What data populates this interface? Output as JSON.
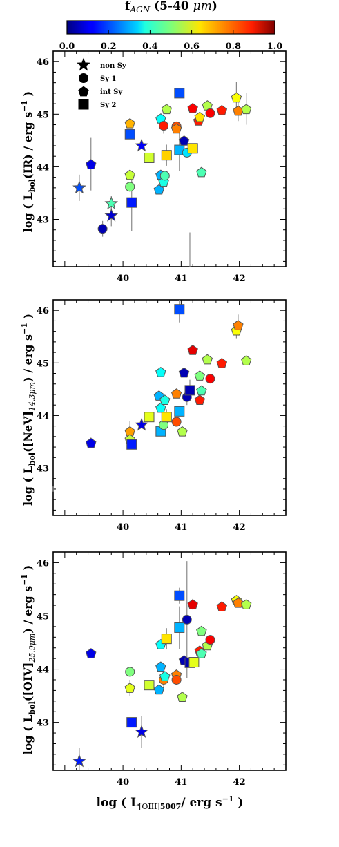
{
  "colorbar": {
    "title_main": "f",
    "title_sub": "AGN",
    "title_range": " (5-40 ",
    "title_unit": "μm",
    "title_close": ")",
    "ticks": [
      "0.0",
      "0.2",
      "0.4",
      "0.6",
      "0.8",
      "1.0"
    ],
    "range": [
      0,
      1
    ],
    "colormap": "jet"
  },
  "legend": [
    {
      "marker": "star",
      "label": "non Sy"
    },
    {
      "marker": "circle",
      "label": "Sy 1"
    },
    {
      "marker": "pentagon",
      "label": "int Sy"
    },
    {
      "marker": "square",
      "label": "Sy 2"
    }
  ],
  "xlabel": {
    "pre": "log ( L",
    "sub": "[OIII]",
    "sub2": "5007",
    "post": "/ erg s",
    "sup": "−1",
    "close": " )"
  },
  "chart_data": [
    {
      "type": "scatter",
      "ylabel": {
        "pre": "log ( L",
        "sub": "bol",
        "mid": "(IR) / erg s",
        "sup": "−1",
        "close": " )"
      },
      "xlim": [
        38.8,
        42.8
      ],
      "ylim": [
        42.1,
        46.2
      ],
      "xticks": [
        "40",
        "41",
        "42"
      ],
      "yticks": [
        "43",
        "44",
        "45",
        "46"
      ],
      "points": [
        {
          "x": 39.25,
          "y": 43.6,
          "m": "star",
          "c": 0.2,
          "e": 0.25
        },
        {
          "x": 39.45,
          "y": 44.05,
          "m": "pentagon",
          "c": 0.1,
          "e": 0.5
        },
        {
          "x": 39.65,
          "y": 42.82,
          "m": "circle",
          "c": 0.05,
          "e": 0.15
        },
        {
          "x": 39.8,
          "y": 43.3,
          "m": "star",
          "c": 0.45,
          "e": 0.15
        },
        {
          "x": 39.8,
          "y": 43.07,
          "m": "star",
          "c": 0.08,
          "e": 0.2
        },
        {
          "x": 40.12,
          "y": 44.83,
          "m": "pentagon",
          "c": 0.7,
          "e": 0
        },
        {
          "x": 40.12,
          "y": 44.62,
          "m": "square",
          "c": 0.2,
          "e": 0
        },
        {
          "x": 40.12,
          "y": 43.85,
          "m": "pentagon",
          "c": 0.57,
          "e": 0
        },
        {
          "x": 40.12,
          "y": 43.62,
          "m": "circle",
          "c": 0.5,
          "e": 0
        },
        {
          "x": 40.15,
          "y": 43.32,
          "m": "square",
          "c": 0.15,
          "e": 0.55
        },
        {
          "x": 40.32,
          "y": 44.4,
          "m": "star",
          "c": 0.12,
          "e": 0
        },
        {
          "x": 40.45,
          "y": 44.17,
          "m": "square",
          "c": 0.58,
          "e": 0
        },
        {
          "x": 40.62,
          "y": 43.57,
          "m": "pentagon",
          "c": 0.3,
          "e": 0
        },
        {
          "x": 40.65,
          "y": 43.85,
          "m": "pentagon",
          "c": 0.3,
          "e": 0
        },
        {
          "x": 40.65,
          "y": 44.92,
          "m": "pentagon",
          "c": 0.38,
          "e": 0
        },
        {
          "x": 40.7,
          "y": 44.78,
          "m": "circle",
          "c": 0.85,
          "e": 0.15
        },
        {
          "x": 40.7,
          "y": 43.72,
          "m": "pentagon",
          "c": 0.4,
          "e": 0
        },
        {
          "x": 40.72,
          "y": 43.83,
          "m": "circle",
          "c": 0.45,
          "e": 0
        },
        {
          "x": 40.75,
          "y": 45.1,
          "m": "pentagon",
          "c": 0.55,
          "e": 0
        },
        {
          "x": 40.75,
          "y": 44.22,
          "m": "square",
          "c": 0.67,
          "e": 0.2
        },
        {
          "x": 40.92,
          "y": 44.77,
          "m": "circle",
          "c": 0.8,
          "e": 0
        },
        {
          "x": 40.92,
          "y": 44.73,
          "m": "pentagon",
          "c": 0.75,
          "e": 0
        },
        {
          "x": 40.97,
          "y": 45.4,
          "m": "square",
          "c": 0.2,
          "e": 0
        },
        {
          "x": 40.97,
          "y": 44.32,
          "m": "square",
          "c": 0.3,
          "e": 0.4
        },
        {
          "x": 41.05,
          "y": 44.5,
          "m": "pentagon",
          "c": 0.05,
          "e": 0
        },
        {
          "x": 41.1,
          "y": 44.27,
          "m": "circle",
          "c": 0.35,
          "e": 0
        },
        {
          "x": 41.15,
          "y": 42.1,
          "m": "none",
          "c": 0,
          "e": 0.65
        },
        {
          "x": 41.2,
          "y": 45.12,
          "m": "pentagon",
          "c": 0.88,
          "e": 0
        },
        {
          "x": 41.2,
          "y": 44.35,
          "m": "square",
          "c": 0.65,
          "e": 0
        },
        {
          "x": 41.3,
          "y": 44.88,
          "m": "pentagon",
          "c": 0.85,
          "e": 0
        },
        {
          "x": 41.32,
          "y": 44.95,
          "m": "pentagon",
          "c": 0.65,
          "e": 0
        },
        {
          "x": 41.35,
          "y": 43.9,
          "m": "pentagon",
          "c": 0.45,
          "e": 0
        },
        {
          "x": 41.45,
          "y": 45.17,
          "m": "pentagon",
          "c": 0.55,
          "e": 0
        },
        {
          "x": 41.5,
          "y": 45.02,
          "m": "circle",
          "c": 0.88,
          "e": 0
        },
        {
          "x": 41.7,
          "y": 45.08,
          "m": "pentagon",
          "c": 0.85,
          "e": 0
        },
        {
          "x": 41.95,
          "y": 45.32,
          "m": "pentagon",
          "c": 0.62,
          "e": 0.3
        },
        {
          "x": 41.98,
          "y": 45.07,
          "m": "pentagon",
          "c": 0.75,
          "e": 0.2
        },
        {
          "x": 42.12,
          "y": 45.1,
          "m": "pentagon",
          "c": 0.55,
          "e": 0.3
        }
      ]
    },
    {
      "type": "scatter",
      "ylabel": {
        "pre": "log ( L",
        "sub": "bol",
        "mid": "([NeV]",
        "sub2": "14.3μm",
        "close": ") / erg s",
        "sup": "−1",
        "close2": " )"
      },
      "xlim": [
        38.8,
        42.8
      ],
      "ylim": [
        42.1,
        46.2
      ],
      "xticks": [
        "40",
        "41",
        "42"
      ],
      "yticks": [
        "43",
        "44",
        "45",
        "46"
      ],
      "points": [
        {
          "x": 38.8,
          "y": 42.6,
          "m": "none",
          "c": 0,
          "e": 0.05
        },
        {
          "x": 39.45,
          "y": 43.48,
          "m": "pentagon",
          "c": 0.1,
          "e": 0.1
        },
        {
          "x": 40.12,
          "y": 43.7,
          "m": "pentagon",
          "c": 0.72,
          "e": 0.2
        },
        {
          "x": 40.12,
          "y": 43.55,
          "m": "pentagon",
          "c": 0.57,
          "e": 0.1
        },
        {
          "x": 40.15,
          "y": 43.45,
          "m": "square",
          "c": 0.15,
          "e": 0
        },
        {
          "x": 40.32,
          "y": 43.82,
          "m": "star",
          "c": 0.1,
          "e": 0
        },
        {
          "x": 40.45,
          "y": 43.97,
          "m": "square",
          "c": 0.6,
          "e": 0
        },
        {
          "x": 40.62,
          "y": 44.38,
          "m": "pentagon",
          "c": 0.3,
          "e": 0
        },
        {
          "x": 40.65,
          "y": 44.15,
          "m": "pentagon",
          "c": 0.38,
          "e": 0
        },
        {
          "x": 40.65,
          "y": 44.83,
          "m": "pentagon",
          "c": 0.38,
          "e": 0
        },
        {
          "x": 40.65,
          "y": 43.7,
          "m": "square",
          "c": 0.3,
          "e": 0
        },
        {
          "x": 40.7,
          "y": 43.82,
          "m": "circle",
          "c": 0.5,
          "e": 0.2
        },
        {
          "x": 40.72,
          "y": 44.3,
          "m": "pentagon",
          "c": 0.4,
          "e": 0
        },
        {
          "x": 40.75,
          "y": 43.97,
          "m": "square",
          "c": 0.65,
          "e": 0.15
        },
        {
          "x": 40.92,
          "y": 44.42,
          "m": "pentagon",
          "c": 0.75,
          "e": 0
        },
        {
          "x": 40.92,
          "y": 43.88,
          "m": "circle",
          "c": 0.8,
          "e": 0
        },
        {
          "x": 40.97,
          "y": 46.02,
          "m": "square",
          "c": 0.2,
          "e": 0.25
        },
        {
          "x": 40.97,
          "y": 44.08,
          "m": "square",
          "c": 0.3,
          "e": 0
        },
        {
          "x": 41.02,
          "y": 43.7,
          "m": "pentagon",
          "c": 0.55,
          "e": 0
        },
        {
          "x": 41.05,
          "y": 44.82,
          "m": "pentagon",
          "c": 0.05,
          "e": 0
        },
        {
          "x": 41.1,
          "y": 44.35,
          "m": "circle",
          "c": 0.05,
          "e": 0.15
        },
        {
          "x": 41.15,
          "y": 44.48,
          "m": "square",
          "c": 0.05,
          "e": 0.2
        },
        {
          "x": 41.2,
          "y": 45.25,
          "m": "pentagon",
          "c": 0.9,
          "e": 0
        },
        {
          "x": 41.32,
          "y": 44.3,
          "m": "pentagon",
          "c": 0.85,
          "e": 0
        },
        {
          "x": 41.32,
          "y": 44.76,
          "m": "pentagon",
          "c": 0.5,
          "e": 0
        },
        {
          "x": 41.35,
          "y": 44.48,
          "m": "pentagon",
          "c": 0.45,
          "e": 0
        },
        {
          "x": 41.45,
          "y": 45.07,
          "m": "pentagon",
          "c": 0.55,
          "e": 0
        },
        {
          "x": 41.5,
          "y": 44.7,
          "m": "circle",
          "c": 0.88,
          "e": 0
        },
        {
          "x": 41.7,
          "y": 45.0,
          "m": "pentagon",
          "c": 0.85,
          "e": 0
        },
        {
          "x": 41.95,
          "y": 45.62,
          "m": "pentagon",
          "c": 0.62,
          "e": 0.15
        },
        {
          "x": 41.98,
          "y": 45.72,
          "m": "pentagon",
          "c": 0.75,
          "e": 0.2
        },
        {
          "x": 42.12,
          "y": 45.05,
          "m": "pentagon",
          "c": 0.55,
          "e": 0
        }
      ]
    },
    {
      "type": "scatter",
      "ylabel": {
        "pre": "log ( L",
        "sub": "bol",
        "mid": "([OIV]",
        "sub2": "25.9μm",
        "close": ") / erg s",
        "sup": "−1",
        "close2": " )"
      },
      "xlim": [
        38.8,
        42.8
      ],
      "ylim": [
        42.1,
        46.2
      ],
      "xticks": [
        "40",
        "41",
        "42"
      ],
      "yticks": [
        "43",
        "44",
        "45",
        "46"
      ],
      "points": [
        {
          "x": 39.25,
          "y": 42.27,
          "m": "star",
          "c": 0.15,
          "e": 0.25
        },
        {
          "x": 39.45,
          "y": 44.3,
          "m": "pentagon",
          "c": 0.1,
          "e": 0
        },
        {
          "x": 40.12,
          "y": 43.95,
          "m": "circle",
          "c": 0.5,
          "e": 0
        },
        {
          "x": 40.12,
          "y": 43.65,
          "m": "pentagon",
          "c": 0.6,
          "e": 0.15
        },
        {
          "x": 40.15,
          "y": 43.0,
          "m": "square",
          "c": 0.15,
          "e": 0
        },
        {
          "x": 40.32,
          "y": 42.82,
          "m": "star",
          "c": 0.1,
          "e": 0.3
        },
        {
          "x": 40.45,
          "y": 43.7,
          "m": "square",
          "c": 0.58,
          "e": 0
        },
        {
          "x": 40.62,
          "y": 43.62,
          "m": "pentagon",
          "c": 0.3,
          "e": 0
        },
        {
          "x": 40.65,
          "y": 44.05,
          "m": "pentagon",
          "c": 0.3,
          "e": 0
        },
        {
          "x": 40.65,
          "y": 44.47,
          "m": "pentagon",
          "c": 0.38,
          "e": 0
        },
        {
          "x": 40.7,
          "y": 43.8,
          "m": "circle",
          "c": 0.75,
          "e": 0.15
        },
        {
          "x": 40.72,
          "y": 43.87,
          "m": "pentagon",
          "c": 0.4,
          "e": 0
        },
        {
          "x": 40.75,
          "y": 44.57,
          "m": "square",
          "c": 0.65,
          "e": 0.2
        },
        {
          "x": 40.92,
          "y": 43.9,
          "m": "pentagon",
          "c": 0.75,
          "e": 0
        },
        {
          "x": 40.92,
          "y": 43.8,
          "m": "circle",
          "c": 0.8,
          "e": 0
        },
        {
          "x": 40.97,
          "y": 45.38,
          "m": "square",
          "c": 0.2,
          "e": 0.15
        },
        {
          "x": 40.97,
          "y": 44.78,
          "m": "square",
          "c": 0.3,
          "e": 0.4
        },
        {
          "x": 41.02,
          "y": 43.48,
          "m": "pentagon",
          "c": 0.55,
          "e": 0
        },
        {
          "x": 41.05,
          "y": 44.17,
          "m": "pentagon",
          "c": 0.05,
          "e": 0
        },
        {
          "x": 41.1,
          "y": 44.93,
          "m": "circle",
          "c": 0.05,
          "e": 1.1
        },
        {
          "x": 41.15,
          "y": 44.12,
          "m": "square",
          "c": 0.05,
          "e": 0
        },
        {
          "x": 41.2,
          "y": 45.22,
          "m": "pentagon",
          "c": 0.9,
          "e": 0.1
        },
        {
          "x": 41.22,
          "y": 44.13,
          "m": "square",
          "c": 0.6,
          "e": 0
        },
        {
          "x": 41.32,
          "y": 44.35,
          "m": "pentagon",
          "c": 0.85,
          "e": 0
        },
        {
          "x": 41.35,
          "y": 44.72,
          "m": "pentagon",
          "c": 0.5,
          "e": 0
        },
        {
          "x": 41.35,
          "y": 44.3,
          "m": "pentagon",
          "c": 0.45,
          "e": 0
        },
        {
          "x": 41.45,
          "y": 44.45,
          "m": "pentagon",
          "c": 0.55,
          "e": 0
        },
        {
          "x": 41.5,
          "y": 44.55,
          "m": "circle",
          "c": 0.88,
          "e": 0
        },
        {
          "x": 41.7,
          "y": 45.18,
          "m": "pentagon",
          "c": 0.85,
          "e": 0
        },
        {
          "x": 41.95,
          "y": 45.3,
          "m": "pentagon",
          "c": 0.62,
          "e": 0
        },
        {
          "x": 41.98,
          "y": 45.25,
          "m": "pentagon",
          "c": 0.75,
          "e": 0
        },
        {
          "x": 42.12,
          "y": 45.22,
          "m": "pentagon",
          "c": 0.55,
          "e": 0
        }
      ]
    }
  ]
}
